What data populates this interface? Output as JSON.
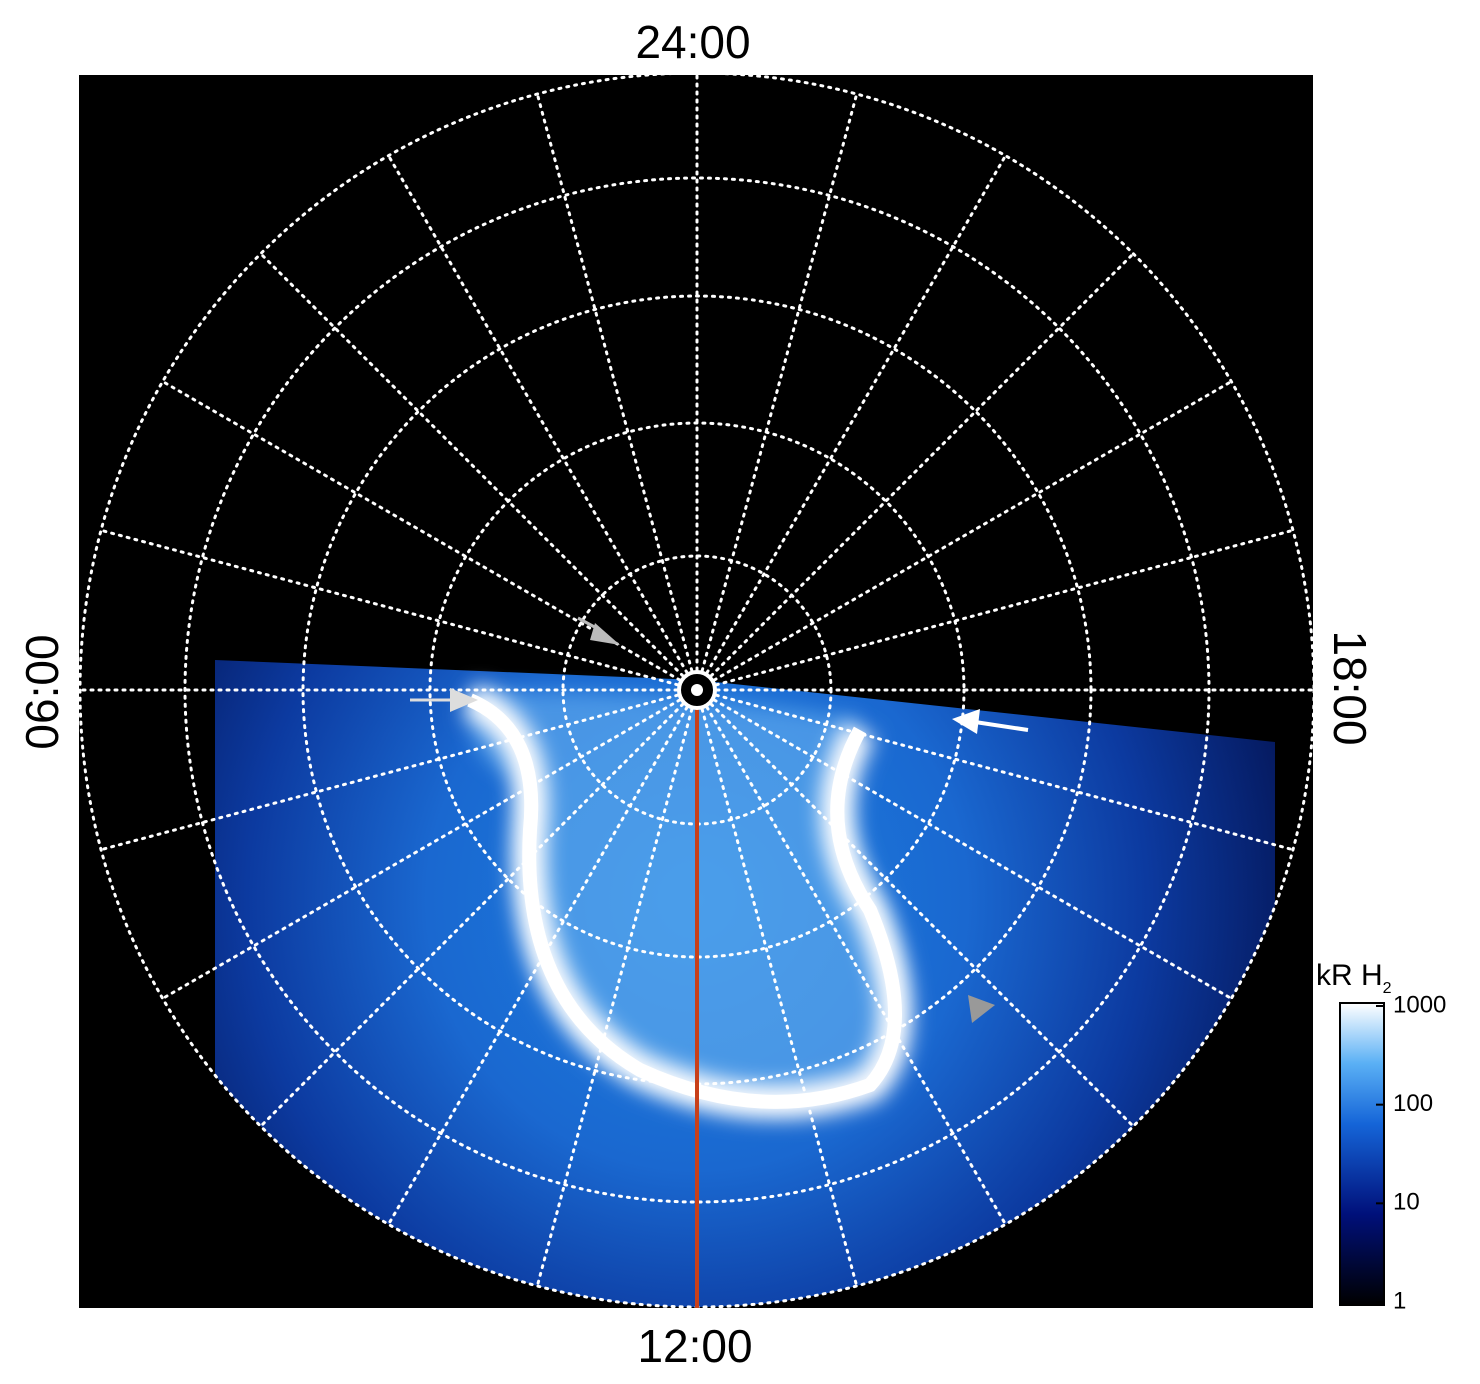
{
  "labels": {
    "top": "24:00",
    "bottom": "12:00",
    "left": "06:00",
    "right": "18:00"
  },
  "colorbar": {
    "title": "kR H",
    "title_sub": "2",
    "scale": "log",
    "lim": [
      1,
      1000
    ],
    "ticks": [
      1,
      10,
      100,
      1000
    ]
  }
}
